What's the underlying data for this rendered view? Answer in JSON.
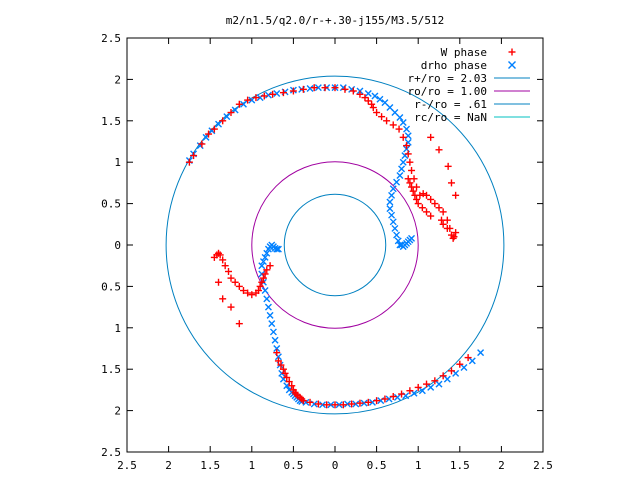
{
  "chart_data": {
    "type": "scatter",
    "title": "m2/n1.5/q2.0/r-+.30-j155/M3.5/512",
    "xlabel": "",
    "ylabel": "",
    "xlim": [
      -2.5,
      2.5
    ],
    "ylim": [
      -2.5,
      2.5
    ],
    "x_ticks": [
      "2.5",
      "2",
      "1.5",
      "1",
      "0.5",
      "0",
      "0.5",
      "1",
      "1.5",
      "2",
      "2.5"
    ],
    "y_ticks": [
      "2.5",
      "2",
      "1.5",
      "1",
      "0.5",
      "0",
      "0.5",
      "1",
      "1.5",
      "2",
      "2.5"
    ],
    "grid": false,
    "legend_position": "top-right",
    "circles": [
      {
        "name": "r+/ro = 2.03",
        "radius": 2.03,
        "color": "#0080c0"
      },
      {
        "name": "ro/ro = 1.00",
        "radius": 1.0,
        "color": "#a000a0"
      },
      {
        "name": "r-/ro = .61",
        "radius": 0.61,
        "color": "#0080c0"
      },
      {
        "name": "rc/ro = NaN",
        "radius": null,
        "color": "#00c0c0"
      }
    ],
    "series": [
      {
        "name": "W phase",
        "marker": "plus",
        "color": "#ff0000",
        "x": [
          -1.75,
          -1.7,
          -1.6,
          -1.52,
          -1.45,
          -1.35,
          -1.25,
          -1.15,
          -1.05,
          -0.95,
          -0.85,
          -0.75,
          -0.62,
          -0.5,
          -0.38,
          -0.25,
          -0.12,
          0.0,
          0.12,
          0.22,
          0.3,
          0.36,
          0.4,
          0.44,
          0.46,
          0.5,
          0.56,
          0.62,
          0.7,
          0.77,
          0.82,
          0.86,
          0.88,
          0.9,
          0.92,
          0.95,
          0.98,
          1.02,
          1.06,
          1.1,
          1.15,
          1.2,
          1.25,
          1.3,
          1.35,
          1.38,
          1.4,
          1.42,
          1.43,
          1.45,
          1.35,
          1.3,
          1.28,
          1.15,
          1.1,
          1.05,
          1.0,
          0.98,
          0.96,
          0.94,
          0.92,
          0.9,
          0.88,
          1.45,
          1.4,
          1.36,
          1.25,
          1.15,
          -1.45,
          -1.42,
          -1.4,
          -1.38,
          -1.35,
          -1.32,
          -1.28,
          -1.25,
          -1.2,
          -1.15,
          -1.1,
          -1.05,
          -1.0,
          -0.95,
          -0.92,
          -0.9,
          -0.88,
          -0.86,
          -0.84,
          -0.82,
          -0.78,
          -1.4,
          -1.35,
          -1.25,
          -1.15,
          -0.7,
          -0.68,
          -0.65,
          -0.62,
          -0.6,
          -0.58,
          -0.55,
          -0.52,
          -0.5,
          -0.48,
          -0.47,
          -0.45,
          -0.42,
          -0.4,
          -0.38,
          -0.3,
          -0.2,
          -0.1,
          0.0,
          0.1,
          0.2,
          0.3,
          0.4,
          0.5,
          0.6,
          0.7,
          0.8,
          0.9,
          1.0,
          1.1,
          1.2,
          1.3,
          1.4,
          1.5,
          1.6
        ],
        "y": [
          1.0,
          1.08,
          1.22,
          1.34,
          1.4,
          1.5,
          1.6,
          1.7,
          1.75,
          1.78,
          1.8,
          1.82,
          1.84,
          1.86,
          1.88,
          1.9,
          1.9,
          1.9,
          1.88,
          1.86,
          1.82,
          1.78,
          1.74,
          1.7,
          1.66,
          1.6,
          1.55,
          1.5,
          1.45,
          1.4,
          1.3,
          1.2,
          1.1,
          1.0,
          0.9,
          0.8,
          0.7,
          0.6,
          0.62,
          0.6,
          0.55,
          0.5,
          0.45,
          0.4,
          0.3,
          0.2,
          0.12,
          0.08,
          0.1,
          0.15,
          0.2,
          0.25,
          0.3,
          0.35,
          0.4,
          0.45,
          0.5,
          0.55,
          0.6,
          0.65,
          0.7,
          0.75,
          0.8,
          0.6,
          0.75,
          0.95,
          1.15,
          1.3,
          -0.15,
          -0.12,
          -0.1,
          -0.12,
          -0.18,
          -0.25,
          -0.32,
          -0.4,
          -0.45,
          -0.5,
          -0.55,
          -0.58,
          -0.6,
          -0.58,
          -0.55,
          -0.5,
          -0.45,
          -0.4,
          -0.35,
          -0.3,
          -0.25,
          -0.45,
          -0.65,
          -0.75,
          -0.95,
          -1.3,
          -1.4,
          -1.45,
          -1.5,
          -1.55,
          -1.6,
          -1.65,
          -1.7,
          -1.75,
          -1.78,
          -1.8,
          -1.82,
          -1.84,
          -1.86,
          -1.88,
          -1.9,
          -1.92,
          -1.93,
          -1.93,
          -1.93,
          -1.92,
          -1.91,
          -1.9,
          -1.88,
          -1.86,
          -1.83,
          -1.8,
          -1.76,
          -1.72,
          -1.68,
          -1.64,
          -1.58,
          -1.52,
          -1.44,
          -1.36
        ]
      },
      {
        "name": "drho phase",
        "marker": "cross",
        "color": "#0080ff",
        "x": [
          -1.75,
          -1.7,
          -1.62,
          -1.55,
          -1.48,
          -1.4,
          -1.3,
          -1.2,
          -1.1,
          -1.0,
          -0.9,
          -0.8,
          -0.7,
          -0.6,
          -0.5,
          -0.4,
          -0.3,
          -0.2,
          -0.1,
          0.0,
          0.1,
          0.2,
          0.3,
          0.4,
          0.48,
          0.54,
          0.6,
          0.66,
          0.72,
          0.78,
          0.82,
          0.86,
          0.88,
          0.88,
          0.86,
          0.84,
          0.82,
          0.8,
          0.78,
          0.74,
          0.7,
          0.68,
          0.66,
          0.66,
          0.68,
          0.7,
          0.72,
          0.74,
          0.76,
          0.78,
          0.8,
          0.82,
          0.84,
          0.86,
          0.88,
          0.9,
          0.92,
          -0.68,
          -0.7,
          -0.72,
          -0.74,
          -0.76,
          -0.78,
          -0.8,
          -0.82,
          -0.84,
          -0.86,
          -0.88,
          -0.88,
          -0.86,
          -0.84,
          -0.82,
          -0.8,
          -0.78,
          -0.76,
          -0.74,
          -0.72,
          -0.7,
          -0.68,
          -0.66,
          -0.64,
          -0.62,
          -0.58,
          -0.55,
          -0.52,
          -0.5,
          -0.48,
          -0.46,
          -0.44,
          -0.42,
          -0.4,
          -0.35,
          -0.25,
          -0.15,
          -0.05,
          0.05,
          0.15,
          0.25,
          0.35,
          0.45,
          0.55,
          0.65,
          0.75,
          0.85,
          0.95,
          1.05,
          1.15,
          1.25,
          1.35,
          1.45,
          1.55,
          1.65,
          1.75
        ],
        "y": [
          1.02,
          1.1,
          1.2,
          1.3,
          1.38,
          1.46,
          1.55,
          1.63,
          1.7,
          1.75,
          1.78,
          1.81,
          1.83,
          1.85,
          1.87,
          1.88,
          1.89,
          1.9,
          1.9,
          1.9,
          1.9,
          1.88,
          1.86,
          1.83,
          1.8,
          1.76,
          1.72,
          1.66,
          1.6,
          1.54,
          1.48,
          1.4,
          1.32,
          1.24,
          1.16,
          1.08,
          1.0,
          0.92,
          0.84,
          0.76,
          0.68,
          0.6,
          0.52,
          0.44,
          0.36,
          0.28,
          0.2,
          0.12,
          0.05,
          0.0,
          0.0,
          -0.02,
          0.0,
          0.02,
          0.04,
          0.06,
          0.08,
          -0.05,
          -0.05,
          -0.04,
          -0.02,
          0.0,
          -0.02,
          -0.05,
          -0.1,
          -0.15,
          -0.2,
          -0.25,
          -0.35,
          -0.45,
          -0.55,
          -0.65,
          -0.75,
          -0.85,
          -0.95,
          -1.05,
          -1.15,
          -1.25,
          -1.35,
          -1.45,
          -1.55,
          -1.62,
          -1.7,
          -1.75,
          -1.78,
          -1.8,
          -1.82,
          -1.84,
          -1.86,
          -1.88,
          -1.89,
          -1.9,
          -1.92,
          -1.93,
          -1.93,
          -1.93,
          -1.92,
          -1.92,
          -1.91,
          -1.9,
          -1.88,
          -1.86,
          -1.84,
          -1.82,
          -1.79,
          -1.76,
          -1.72,
          -1.68,
          -1.62,
          -1.55,
          -1.48,
          -1.4,
          -1.3
        ]
      }
    ]
  }
}
